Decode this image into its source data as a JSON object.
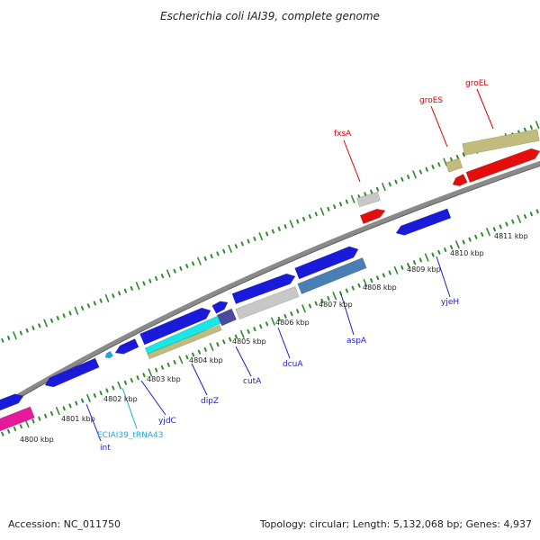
{
  "title": "Escherichia coli IAI39, complete genome",
  "footer": {
    "accession": "Accession: NC_011750",
    "summary": "Topology: circular; Length: 5,132,068 bp; Genes: 4,937"
  },
  "colors": {
    "backbone": "#8a8a8a",
    "tick": "#2e8b2e",
    "blue": "#1a1adb",
    "steelblue": "#4a7fb5",
    "gray": "#c8c8c8",
    "khaki": "#c2bc7c",
    "red": "#e60d0d",
    "cyan": "#19e6e6",
    "navy": "#4a4aa0",
    "magenta": "#e6199a",
    "label_blue": "#1a1ad6",
    "label_red": "#d40000",
    "label_cyan": "#19a8e6"
  },
  "kbp_labels": [
    "4800 kbp",
    "4801 kbp",
    "4802 kbp",
    "4803 kbp",
    "4804 kbp",
    "4805 kbp",
    "4806 kbp",
    "4807 kbp",
    "4808 kbp",
    "4809 kbp",
    "4810 kbp",
    "4811 kbp"
  ],
  "gene_labels": [
    {
      "name": "int",
      "color": "label_blue"
    },
    {
      "name": "ECIAI39_tRNA43",
      "color": "label_cyan"
    },
    {
      "name": "yjdC",
      "color": "label_blue"
    },
    {
      "name": "dipZ",
      "color": "label_blue"
    },
    {
      "name": "cutA",
      "color": "label_blue"
    },
    {
      "name": "dcuA",
      "color": "label_blue"
    },
    {
      "name": "aspA",
      "color": "label_blue"
    },
    {
      "name": "yjeH",
      "color": "label_blue"
    },
    {
      "name": "fxsA",
      "color": "label_red"
    },
    {
      "name": "groES",
      "color": "label_red"
    },
    {
      "name": "groEL",
      "color": "label_red"
    }
  ]
}
